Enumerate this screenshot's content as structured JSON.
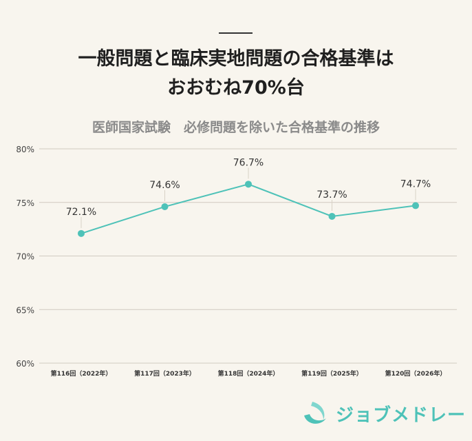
{
  "header": {
    "title_line1": "一般問題と臨床実地問題の合格基準は",
    "title_line2": "おおむね70%台",
    "subtitle": "医師国家試験　必修問題を除いた合格基準の推移"
  },
  "chart_data": {
    "type": "line",
    "categories": [
      "第116回（2022年）",
      "第117回（2023年）",
      "第118回（2024年）",
      "第119回（2025年）",
      "第120回（2026年）"
    ],
    "series": [
      {
        "values": [
          72.1,
          74.6,
          76.7,
          73.7,
          74.7
        ]
      }
    ],
    "data_labels": [
      "72.1%",
      "74.6%",
      "76.7%",
      "73.7%",
      "74.7%"
    ],
    "y_ticks": [
      "60%",
      "65%",
      "70%",
      "75%",
      "80%"
    ],
    "ylim": [
      60,
      80
    ],
    "grid": true,
    "color": "#4ec2b8"
  },
  "brand": {
    "name": "ジョブメドレー",
    "color": "#4ec2b8"
  }
}
